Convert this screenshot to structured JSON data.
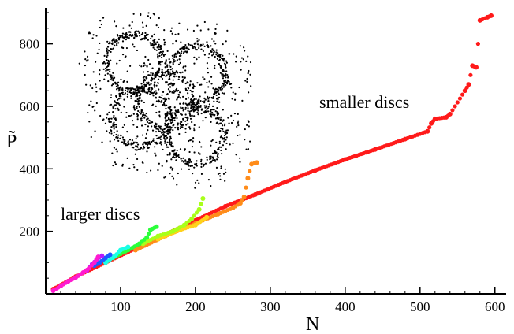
{
  "chart_data": {
    "type": "scatter",
    "title": "",
    "xlabel": "N",
    "ylabel": "P̃",
    "xlim": [
      0,
      615
    ],
    "ylim": [
      0,
      915
    ],
    "xticks": [
      100,
      200,
      300,
      400,
      500,
      600
    ],
    "yticks": [
      200,
      400,
      600,
      800
    ],
    "grid": false,
    "legend": "none",
    "annotations": [
      {
        "text": "smaller discs"
      },
      {
        "text": "larger discs"
      }
    ],
    "inset": {
      "description": "black point cloud of overlapping ring-shaped clusters",
      "color": "#000000"
    },
    "series": [
      {
        "color": "#ff1a1a",
        "points": [
          [
            10,
            15
          ],
          [
            40,
            55
          ],
          [
            80,
            100
          ],
          [
            120,
            145
          ],
          [
            160,
            190
          ],
          [
            200,
            235
          ],
          [
            240,
            280
          ],
          [
            280,
            318
          ],
          [
            320,
            358
          ],
          [
            360,
            395
          ],
          [
            400,
            430
          ],
          [
            440,
            462
          ],
          [
            480,
            495
          ],
          [
            510,
            520
          ],
          [
            515,
            545
          ],
          [
            520,
            560
          ],
          [
            535,
            565
          ],
          [
            540,
            575
          ],
          [
            560,
            650
          ],
          [
            565,
            670
          ],
          [
            570,
            730
          ],
          [
            575,
            725
          ],
          [
            580,
            875
          ],
          [
            590,
            885
          ],
          [
            595,
            890
          ]
        ]
      },
      {
        "color": "#ff8c1a",
        "points": [
          [
            120,
            140
          ],
          [
            160,
            185
          ],
          [
            200,
            225
          ],
          [
            230,
            255
          ],
          [
            250,
            275
          ],
          [
            260,
            290
          ],
          [
            265,
            310
          ],
          [
            270,
            370
          ],
          [
            275,
            415
          ],
          [
            282,
            420
          ]
        ]
      },
      {
        "color": "#ffd21a",
        "points": [
          [
            150,
            175
          ],
          [
            180,
            205
          ],
          [
            200,
            220
          ],
          [
            215,
            245
          ]
        ]
      },
      {
        "color": "#a8ff1a",
        "points": [
          [
            130,
            160
          ],
          [
            150,
            185
          ],
          [
            170,
            200
          ],
          [
            185,
            220
          ],
          [
            195,
            240
          ],
          [
            205,
            270
          ],
          [
            210,
            305
          ]
        ]
      },
      {
        "color": "#2aff3a",
        "points": [
          [
            90,
            115
          ],
          [
            110,
            140
          ],
          [
            125,
            160
          ],
          [
            135,
            180
          ],
          [
            140,
            205
          ],
          [
            148,
            215
          ]
        ]
      },
      {
        "color": "#1affe6",
        "points": [
          [
            80,
            100
          ],
          [
            92,
            120
          ],
          [
            100,
            140
          ],
          [
            110,
            150
          ]
        ]
      },
      {
        "color": "#1a5aff",
        "points": [
          [
            65,
            90
          ],
          [
            72,
            100
          ],
          [
            80,
            115
          ],
          [
            86,
            125
          ]
        ]
      },
      {
        "color": "#b31aff",
        "points": [
          [
            55,
            75
          ],
          [
            62,
            95
          ],
          [
            68,
            110
          ],
          [
            75,
            122
          ]
        ]
      },
      {
        "color": "#ff1ad0",
        "points": [
          [
            10,
            10
          ],
          [
            20,
            25
          ],
          [
            30,
            40
          ],
          [
            40,
            52
          ],
          [
            50,
            68
          ],
          [
            58,
            82
          ],
          [
            65,
            100
          ],
          [
            70,
            118
          ]
        ]
      }
    ]
  }
}
